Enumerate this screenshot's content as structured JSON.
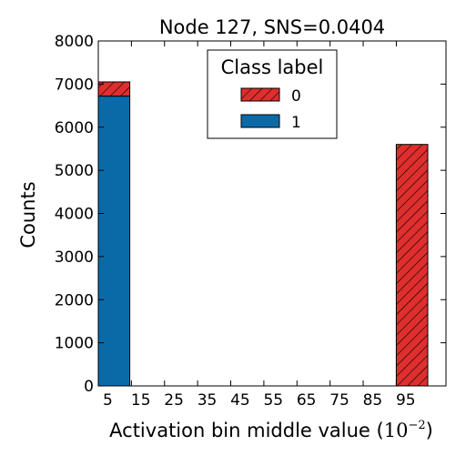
{
  "chart_data": {
    "type": "bar",
    "stacked": true,
    "title": "Node 127, SNS=0.0404",
    "xlabel": "Activation bin middle value (10^-2)",
    "xlabel_text": "Activation bin middle value (",
    "xlabel_unit_base": "10",
    "xlabel_unit_exp": "−2",
    "xlabel_close": ")",
    "ylabel": "Counts",
    "categories": [
      "5",
      "15",
      "25",
      "35",
      "45",
      "55",
      "65",
      "75",
      "85",
      "95"
    ],
    "ylim": [
      0,
      8000
    ],
    "yticks": [
      "0",
      "1000",
      "2000",
      "3000",
      "4000",
      "5000",
      "6000",
      "7000",
      "8000"
    ],
    "series": [
      {
        "name": "1",
        "values": [
          6720,
          0,
          0,
          0,
          0,
          0,
          0,
          0,
          0,
          0
        ],
        "color": "#0a6aa8",
        "pattern": "solid"
      },
      {
        "name": "0",
        "values": [
          330,
          0,
          0,
          0,
          0,
          0,
          0,
          0,
          0,
          5600
        ],
        "color": "#de2e2e",
        "pattern": "hatch"
      }
    ],
    "legend": {
      "title": "Class label",
      "placement": "upper-center",
      "entries": [
        "0",
        "1"
      ]
    },
    "grid": false
  }
}
